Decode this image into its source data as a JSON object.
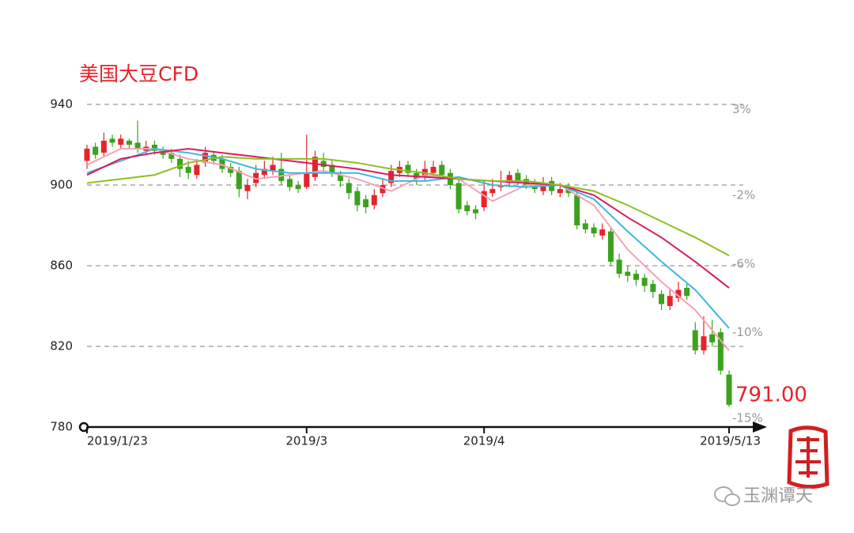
{
  "chart_data": {
    "type": "candlestick",
    "title": "美国大豆CFD",
    "annotation": "791.00",
    "watermark": "玉渊谭天",
    "up_color": "#e8222a",
    "down_color": "#3aa21c",
    "xlim": [
      0,
      76
    ],
    "xticks": [
      {
        "value": 0,
        "label": "2019/1/23"
      },
      {
        "value": 26,
        "label": "2019/3"
      },
      {
        "value": 47,
        "label": "2019/4"
      },
      {
        "value": 76,
        "label": "2019/5/13"
      }
    ],
    "ylim": [
      780,
      940
    ],
    "yticks": [
      780,
      820,
      860,
      900,
      940
    ],
    "y2lim": [
      -15.5,
      3.3
    ],
    "y2ticks": [
      {
        "value": 3,
        "label": "3%"
      },
      {
        "value": -2,
        "label": "-2%"
      },
      {
        "value": -6,
        "label": "-6%"
      },
      {
        "value": -10,
        "label": "-10%"
      },
      {
        "value": -15,
        "label": "-15%"
      }
    ],
    "grid": true,
    "open": [
      912,
      919,
      916,
      923,
      920,
      922,
      921,
      917,
      920,
      917,
      916,
      913,
      909,
      905,
      911,
      915,
      913,
      909,
      907,
      897,
      901,
      905,
      907,
      908,
      903,
      900,
      899,
      904,
      912,
      910,
      905,
      901,
      897,
      893,
      890,
      896,
      901,
      906,
      910,
      906,
      904,
      906,
      910,
      906,
      901,
      890,
      888,
      889,
      896,
      899,
      901,
      906,
      903,
      901,
      897,
      902,
      896,
      899,
      895,
      881,
      879,
      875,
      877,
      863,
      857,
      856,
      854,
      851,
      846,
      840,
      844,
      849,
      828,
      818,
      826,
      827,
      806
    ],
    "high": [
      920,
      921,
      926,
      925,
      925,
      923,
      932,
      922,
      922,
      919,
      918,
      915,
      912,
      913,
      919,
      917,
      915,
      911,
      909,
      903,
      910,
      912,
      914,
      916,
      905,
      902,
      925,
      917,
      916,
      912,
      907,
      903,
      899,
      895,
      898,
      903,
      910,
      912,
      912,
      908,
      912,
      912,
      912,
      908,
      903,
      892,
      890,
      902,
      903,
      907,
      907,
      908,
      905,
      903,
      904,
      904,
      901,
      901,
      897,
      883,
      881,
      881,
      879,
      866,
      860,
      858,
      856,
      853,
      848,
      848,
      852,
      851,
      832,
      835,
      833,
      829,
      808
    ],
    "low": [
      908,
      913,
      914,
      919,
      918,
      918,
      916,
      915,
      915,
      913,
      911,
      904,
      903,
      903,
      909,
      910,
      906,
      904,
      894,
      893,
      899,
      903,
      905,
      900,
      897,
      896,
      898,
      902,
      906,
      904,
      899,
      893,
      887,
      886,
      888,
      894,
      899,
      904,
      904,
      900,
      902,
      904,
      903,
      898,
      886,
      885,
      883,
      887,
      894,
      897,
      899,
      900,
      898,
      896,
      895,
      895,
      894,
      894,
      878,
      876,
      874,
      873,
      860,
      854,
      852,
      850,
      847,
      844,
      838,
      838,
      842,
      843,
      816,
      816,
      820,
      806,
      790
    ],
    "close": [
      918,
      915,
      922,
      921,
      923,
      920,
      918,
      919,
      917,
      915,
      913,
      908,
      906,
      910,
      916,
      912,
      908,
      906,
      898,
      900,
      906,
      908,
      910,
      902,
      899,
      898,
      906,
      914,
      909,
      906,
      902,
      896,
      890,
      889,
      895,
      900,
      907,
      909,
      906,
      903,
      908,
      909,
      905,
      900,
      888,
      887,
      886,
      897,
      898,
      900,
      905,
      902,
      900,
      898,
      901,
      897,
      898,
      896,
      880,
      878,
      876,
      878,
      862,
      856,
      855,
      853,
      850,
      847,
      841,
      845,
      848,
      845,
      818,
      825,
      822,
      808,
      791
    ],
    "series": [
      {
        "color": "#f4a3b4",
        "x": [
          0,
          4,
          8,
          12,
          16,
          20,
          24,
          28,
          32,
          36,
          40,
          44,
          48,
          52,
          56,
          60,
          64,
          68,
          72,
          76
        ],
        "values": [
          910,
          918,
          918,
          913,
          910,
          903,
          905,
          907,
          903,
          897,
          905,
          903,
          892,
          900,
          900,
          890,
          868,
          852,
          838,
          818
        ]
      },
      {
        "color": "#3bb8e0",
        "x": [
          0,
          4,
          8,
          12,
          16,
          20,
          24,
          28,
          32,
          36,
          40,
          44,
          48,
          52,
          56,
          60,
          64,
          68,
          72,
          76
        ],
        "values": [
          906,
          912,
          918,
          916,
          913,
          908,
          906,
          906,
          906,
          902,
          902,
          904,
          900,
          899,
          900,
          893,
          877,
          862,
          848,
          829
        ]
      },
      {
        "color": "#d81b60",
        "x": [
          0,
          4,
          8,
          12,
          16,
          20,
          24,
          28,
          32,
          36,
          40,
          44,
          48,
          52,
          56,
          60,
          64,
          68,
          72,
          76
        ],
        "values": [
          905,
          913,
          916,
          918,
          916,
          914,
          912,
          910,
          908,
          905,
          904,
          903,
          902,
          901,
          900,
          895,
          884,
          874,
          862,
          849
        ]
      },
      {
        "color": "#8cc020",
        "x": [
          0,
          4,
          8,
          12,
          16,
          20,
          24,
          28,
          32,
          36,
          40,
          44,
          48,
          52,
          56,
          60,
          64,
          68,
          72,
          76
        ],
        "values": [
          901,
          903,
          905,
          911,
          914,
          913,
          913,
          913,
          911,
          908,
          906,
          903,
          902,
          902,
          900,
          897,
          890,
          882,
          874,
          865
        ]
      }
    ]
  }
}
